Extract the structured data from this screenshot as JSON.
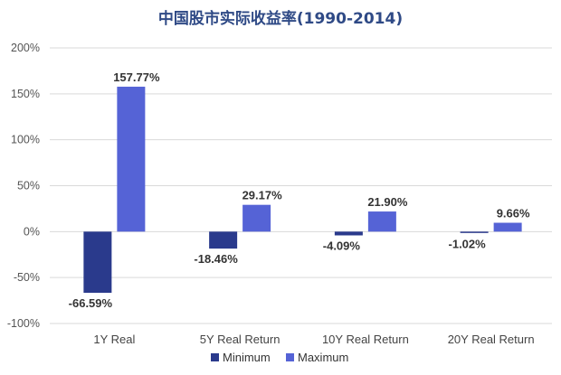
{
  "colors": {
    "minimum": "#2a3a8c",
    "maximum": "#5563d6",
    "grid": "#d9d9d9",
    "title": "#2f4a86"
  },
  "chart_data": {
    "type": "bar",
    "title": "中国股市实际收益率(1990-2014)",
    "categories": [
      "1Y Real",
      "5Y Real Return",
      "10Y Real Return",
      "20Y Real Return"
    ],
    "series": [
      {
        "name": "Minimum",
        "values": [
          -66.59,
          -18.46,
          -4.09,
          -1.02
        ],
        "labels": [
          "-66.59%",
          "-18.46%",
          "-4.09%",
          "-1.02%"
        ]
      },
      {
        "name": "Maximum",
        "values": [
          157.77,
          29.17,
          21.9,
          9.66
        ],
        "labels": [
          "157.77%",
          "29.17%",
          "21.90%",
          "9.66%"
        ]
      }
    ],
    "ylim": [
      -100,
      200
    ],
    "yticks": [
      200,
      150,
      100,
      50,
      0,
      -50,
      -100
    ],
    "ytick_labels": [
      "200%",
      "150%",
      "100%",
      "50%",
      "0%",
      "-50%",
      "-100%"
    ],
    "grid": true,
    "legend_position": "bottom"
  }
}
